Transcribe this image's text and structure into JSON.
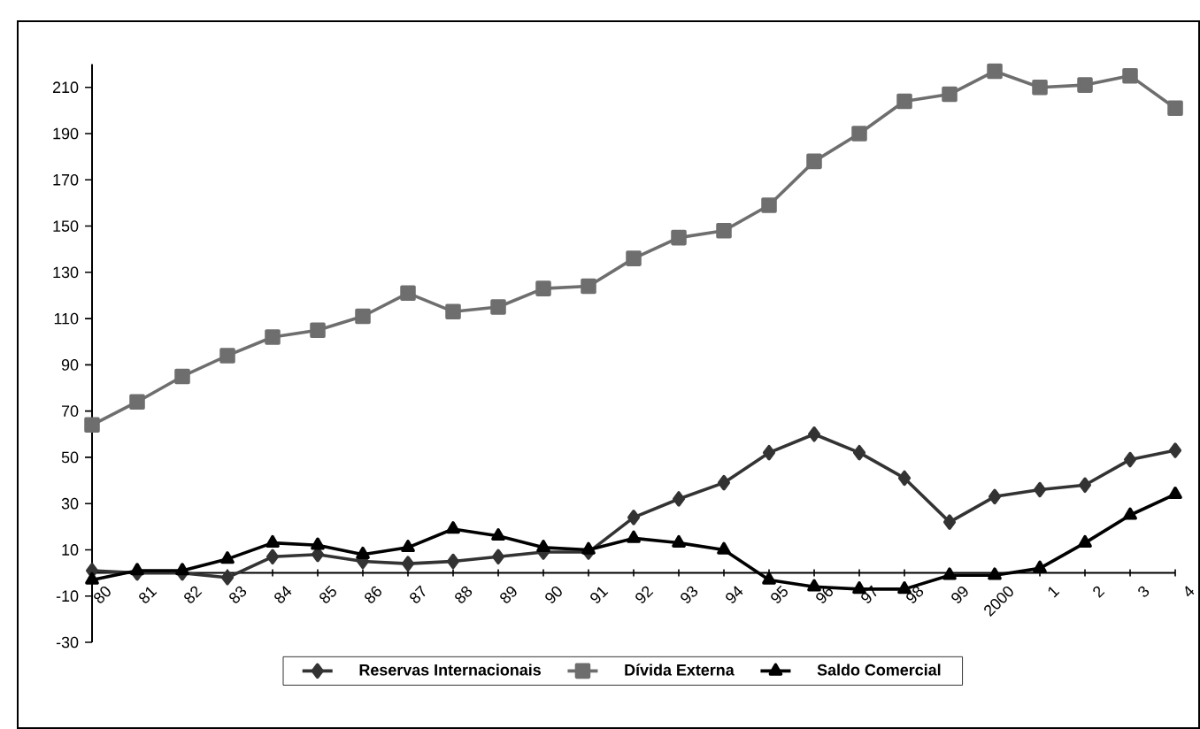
{
  "chart_data": {
    "type": "line",
    "categories": [
      "80",
      "81",
      "82",
      "83",
      "84",
      "85",
      "86",
      "87",
      "88",
      "89",
      "90",
      "91",
      "92",
      "93",
      "94",
      "95",
      "96",
      "97",
      "98",
      "99",
      "2000",
      "1",
      "2",
      "3",
      "4"
    ],
    "series": [
      {
        "name": "Reservas Internacionais",
        "color": "#333333",
        "marker": "diamond",
        "values": [
          1,
          0,
          0,
          -2,
          7,
          8,
          5,
          4,
          5,
          7,
          9,
          9,
          24,
          32,
          39,
          52,
          60,
          52,
          41,
          22,
          33,
          36,
          38,
          49,
          53
        ]
      },
      {
        "name": "Dívida Externa",
        "color": "#6e6e6e",
        "marker": "square",
        "values": [
          64,
          74,
          85,
          94,
          102,
          105,
          111,
          121,
          113,
          115,
          123,
          124,
          136,
          145,
          148,
          159,
          178,
          190,
          204,
          207,
          217,
          210,
          211,
          215,
          201
        ]
      },
      {
        "name": "Saldo Comercial",
        "color": "#000000",
        "marker": "triangle",
        "values": [
          -3,
          1,
          1,
          6,
          13,
          12,
          8,
          11,
          19,
          16,
          11,
          10,
          15,
          13,
          10,
          -3,
          -6,
          -7,
          -7,
          -1,
          -1,
          2,
          13,
          25,
          34
        ]
      }
    ],
    "ylim": [
      -30,
      220
    ],
    "yticks": [
      -30,
      -10,
      10,
      30,
      50,
      70,
      90,
      110,
      130,
      150,
      170,
      190,
      210
    ],
    "grid": false,
    "legend": "bottom",
    "line_style": "solid"
  }
}
